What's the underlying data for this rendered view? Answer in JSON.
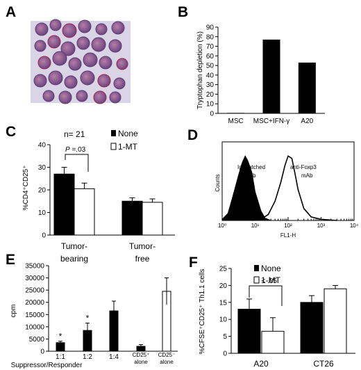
{
  "panels": {
    "A": {
      "label": "A"
    },
    "B": {
      "label": "B"
    },
    "C": {
      "label": "C"
    },
    "D": {
      "label": "D"
    },
    "E": {
      "label": "E"
    },
    "F": {
      "label": "F"
    }
  },
  "chart_data": [
    {
      "panel": "B",
      "type": "bar",
      "ylabel": "Tryptophan depletion (%)",
      "ylim": [
        0,
        90
      ],
      "yticks": [
        "0",
        "10",
        "20",
        "30",
        "40",
        "50",
        "60",
        "70",
        "80",
        "90"
      ],
      "categories": [
        "MSC",
        "MSC+IFN-γ",
        "A20"
      ],
      "values": [
        0.5,
        77,
        53
      ],
      "colors": {
        "fill": "#000000"
      }
    },
    {
      "panel": "C",
      "type": "bar",
      "ylabel": "%CD4⁺CD25⁺",
      "ylim": [
        0,
        40
      ],
      "yticks": [
        "0",
        "10",
        "20",
        "30",
        "40"
      ],
      "categories": [
        "Tumor-bearing",
        "Tumor-free"
      ],
      "category_lines": [
        [
          "Tumor-",
          "bearing"
        ],
        [
          "Tumor-",
          "free"
        ]
      ],
      "series": [
        {
          "name": "None",
          "values": [
            27,
            15
          ],
          "errors": [
            3,
            1.5
          ],
          "color": "#000000"
        },
        {
          "name": "1-MT",
          "values": [
            20.5,
            14.5
          ],
          "errors": [
            2.5,
            1.5
          ],
          "color": "#ffffff"
        }
      ],
      "annotations": {
        "n": "n= 21",
        "p_prefix": "P",
        "p_value": " =.03"
      },
      "legend": "top-right"
    },
    {
      "panel": "D",
      "type": "area",
      "xlabel": "FL1-H",
      "ylabel": "Counts",
      "x_scale": "log",
      "xlim": [
        1,
        10000
      ],
      "x_ticks": [
        "10⁰",
        "10¹",
        "10²",
        "10³",
        "10⁴"
      ],
      "series": [
        {
          "name": "Ig-matched mAb",
          "label_lines": [
            "Ig-matched",
            "mAb"
          ],
          "fill": "#000000",
          "x": [
            1,
            1.5,
            2,
            3,
            4,
            5,
            6,
            8,
            10,
            15,
            20,
            30
          ],
          "y": [
            5,
            30,
            90,
            180,
            240,
            270,
            250,
            200,
            120,
            40,
            10,
            0
          ]
        },
        {
          "name": "anti-Foxp3 mAb",
          "label_lines": [
            "anti-Foxp3",
            "mAb"
          ],
          "fill": "none",
          "x": [
            8,
            15,
            25,
            40,
            60,
            80,
            100,
            130,
            160,
            200,
            300,
            500,
            1000,
            3000
          ],
          "y": [
            0,
            5,
            25,
            80,
            160,
            230,
            270,
            260,
            200,
            130,
            50,
            15,
            5,
            0
          ]
        }
      ]
    },
    {
      "panel": "E",
      "type": "bar",
      "ylabel": "cpm",
      "xlabel": "Suppressor/Responder",
      "ylim": [
        0,
        35000
      ],
      "yticks": [
        "0",
        "5000",
        "10000",
        "15000",
        "20000",
        "25000",
        "30000",
        "35000"
      ],
      "categories": [
        "1:1",
        "1:2",
        "1:4",
        "CD25⁺ alone",
        "CD25⁻ alone"
      ],
      "category_lines": [
        [
          "1:1"
        ],
        [
          "1:2"
        ],
        [
          "1:4"
        ],
        [
          "CD25⁺",
          "alone"
        ],
        [
          "CD25⁻",
          "alone"
        ]
      ],
      "values": [
        3500,
        8500,
        16500,
        2000,
        24500
      ],
      "errors": [
        600,
        3000,
        4000,
        700,
        5500
      ],
      "fills": [
        "#000000",
        "#000000",
        "#000000",
        "#000000",
        "#ffffff"
      ],
      "significance": [
        "*",
        "*",
        "",
        "",
        ""
      ]
    },
    {
      "panel": "F",
      "type": "bar",
      "ylabel": "%CFSE⁺CD25⁺ Th1.1 cells",
      "ylim": [
        0,
        25
      ],
      "yticks": [
        "0",
        "5",
        "10",
        "15",
        "20",
        "25"
      ],
      "categories": [
        "A20",
        "CT26"
      ],
      "series": [
        {
          "name": "None",
          "values": [
            13,
            15
          ],
          "errors": [
            3,
            2
          ],
          "color": "#000000"
        },
        {
          "name": "1-MT",
          "values": [
            6.5,
            19
          ],
          "errors": [
            4,
            1
          ],
          "color": "#ffffff"
        }
      ],
      "annotations": {
        "p_prefix": "P",
        "p_value": " < .05"
      },
      "legend": "top-right"
    }
  ]
}
